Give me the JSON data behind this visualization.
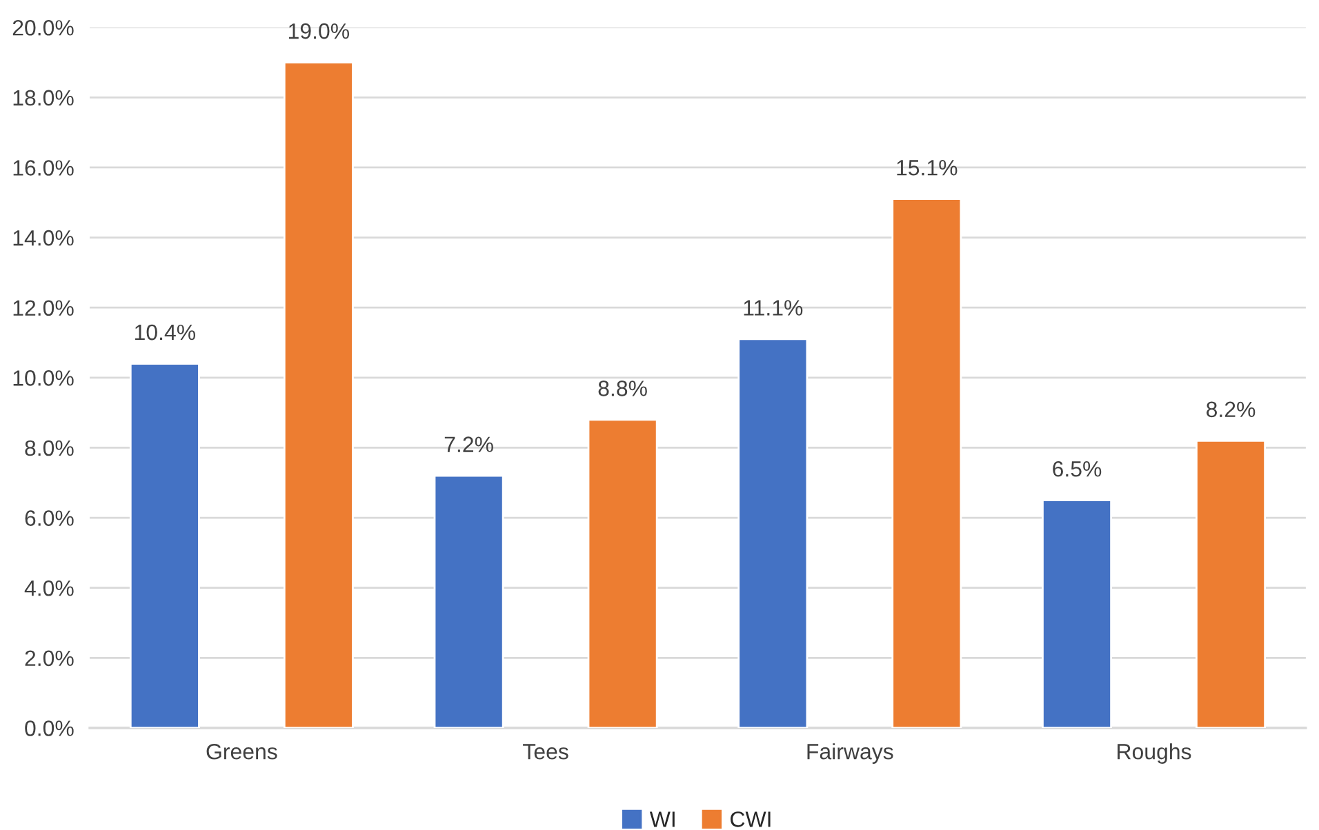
{
  "chart_data": {
    "type": "bar",
    "categories": [
      "Greens",
      "Tees",
      "Fairways",
      "Roughs"
    ],
    "series": [
      {
        "name": "WI",
        "color": "#4472c4",
        "values": [
          10.4,
          7.2,
          11.1,
          6.5
        ],
        "value_labels": [
          "10.4%",
          "7.2%",
          "11.1%",
          "6.5%"
        ]
      },
      {
        "name": "CWI",
        "color": "#ed7d31",
        "values": [
          19.0,
          8.8,
          15.1,
          8.2
        ],
        "value_labels": [
          "19.0%",
          "8.8%",
          "15.1%",
          "8.2%"
        ]
      }
    ],
    "ylim": [
      0,
      20
    ],
    "yticks": [
      {
        "value": 0,
        "label": "0.0%"
      },
      {
        "value": 2,
        "label": "2.0%"
      },
      {
        "value": 4,
        "label": "4.0%"
      },
      {
        "value": 6,
        "label": "6.0%"
      },
      {
        "value": 8,
        "label": "8.0%"
      },
      {
        "value": 10,
        "label": "10.0%"
      },
      {
        "value": 12,
        "label": "12.0%"
      },
      {
        "value": 14,
        "label": "14.0%"
      },
      {
        "value": 16,
        "label": "16.0%"
      },
      {
        "value": 18,
        "label": "18.0%"
      },
      {
        "value": 20,
        "label": "20.0%"
      }
    ],
    "grid": "y",
    "legend": "bottom"
  }
}
